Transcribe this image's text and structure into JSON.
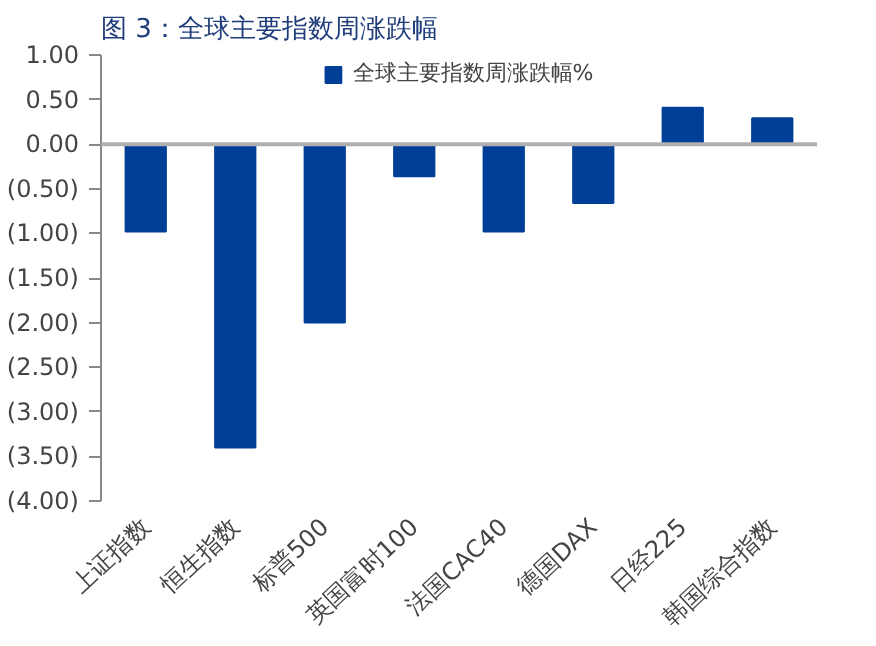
{
  "chart_data": {
    "type": "bar",
    "title": "图 3：全球主要指数周涨跌幅",
    "categories": [
      "上证指数",
      "恒生指数",
      "标普500",
      "英国富时100",
      "法国CAC40",
      "德国DAX",
      "日经225",
      "韩国综合指数"
    ],
    "series": [
      {
        "name": "全球主要指数周涨跌幅%",
        "color": "#003f98",
        "values": [
          -0.98,
          -3.4,
          -2.0,
          -0.36,
          -0.98,
          -0.66,
          0.41,
          0.29
        ]
      }
    ],
    "ylim": [
      -4,
      1
    ],
    "yticks": [
      {
        "value": 1,
        "label": "1.00"
      },
      {
        "value": 0.5,
        "label": "0.50"
      },
      {
        "value": 0,
        "label": "0.00"
      },
      {
        "value": -0.5,
        "label": "(0.50)"
      },
      {
        "value": -1,
        "label": "(1.00)"
      },
      {
        "value": -1.5,
        "label": "(1.50)"
      },
      {
        "value": -2,
        "label": "(2.00)"
      },
      {
        "value": -2.5,
        "label": "(2.50)"
      },
      {
        "value": -3,
        "label": "(3.00)"
      },
      {
        "value": -3.5,
        "label": "(3.50)"
      },
      {
        "value": -4,
        "label": "(4.00)"
      }
    ],
    "ref_lines": [
      {
        "axis": "y",
        "value": 0,
        "color": "#b0b0b0"
      }
    ],
    "grid": false,
    "legend": "top"
  }
}
